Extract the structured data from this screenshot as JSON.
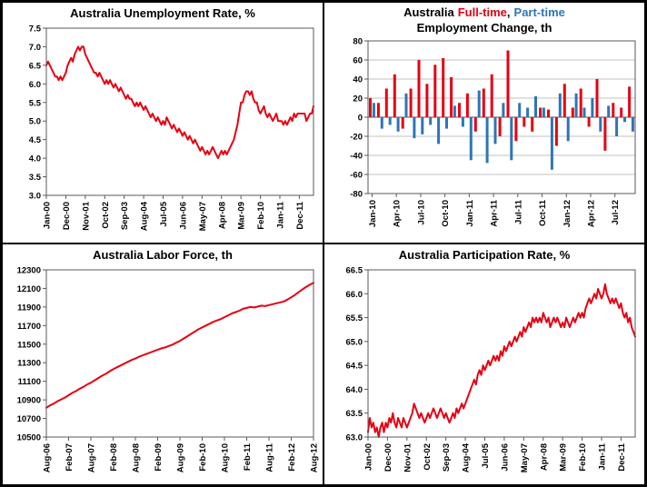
{
  "colors": {
    "line_red": "#e60012",
    "bar_red": "#e60012",
    "bar_blue": "#2e75b6",
    "grid": "#c0c0c0",
    "axis": "#595959",
    "zero_line": "#595959",
    "text": "#000000"
  },
  "panels": [
    {
      "title": "Australia Unemployment Rate, %"
    },
    {
      "title_prefix": "Australia",
      "title_fulltime": "Full-time",
      "title_sep": ",",
      "title_parttime": "Part-time",
      "title_line2": "Employment Change, th"
    },
    {
      "title": "Australia Labor Force, th"
    },
    {
      "title": "Australia Participation Rate, %"
    }
  ],
  "chart_data": [
    {
      "type": "line",
      "title": "Australia Unemployment Rate, %",
      "color": "#e60012",
      "ylim": [
        3.0,
        7.5
      ],
      "ystep": 0.5,
      "ydecimals": 1,
      "grid": false,
      "legend_position": "none",
      "x_tick_labels": [
        "Jan-00",
        "Dec-00",
        "Nov-01",
        "Oct-02",
        "Sep-03",
        "Aug-04",
        "Jul-05",
        "Jun-06",
        "May-07",
        "Apr-08",
        "Mar-09",
        "Feb-10",
        "Jan-11",
        "Dec-11"
      ],
      "x_tick_step": 11,
      "values": [
        6.5,
        6.6,
        6.5,
        6.4,
        6.3,
        6.2,
        6.2,
        6.1,
        6.2,
        6.1,
        6.2,
        6.3,
        6.5,
        6.6,
        6.7,
        6.6,
        6.8,
        6.9,
        7.0,
        6.9,
        7.0,
        7.0,
        6.8,
        6.7,
        6.6,
        6.5,
        6.4,
        6.3,
        6.3,
        6.2,
        6.3,
        6.2,
        6.1,
        6.0,
        6.1,
        6.0,
        6.1,
        6.0,
        5.9,
        6.0,
        5.9,
        5.8,
        5.9,
        5.8,
        5.7,
        5.6,
        5.7,
        5.6,
        5.6,
        5.5,
        5.4,
        5.5,
        5.4,
        5.5,
        5.4,
        5.3,
        5.4,
        5.3,
        5.2,
        5.1,
        5.2,
        5.1,
        5.0,
        5.1,
        5.0,
        4.9,
        5.0,
        4.9,
        5.1,
        5.0,
        4.9,
        4.8,
        4.9,
        4.8,
        4.7,
        4.8,
        4.7,
        4.6,
        4.7,
        4.6,
        4.5,
        4.6,
        4.5,
        4.4,
        4.5,
        4.4,
        4.3,
        4.2,
        4.3,
        4.2,
        4.1,
        4.2,
        4.1,
        4.2,
        4.3,
        4.2,
        4.1,
        4.0,
        4.1,
        4.2,
        4.1,
        4.2,
        4.1,
        4.2,
        4.3,
        4.4,
        4.5,
        4.7,
        4.9,
        5.2,
        5.5,
        5.5,
        5.7,
        5.8,
        5.8,
        5.7,
        5.8,
        5.6,
        5.5,
        5.5,
        5.3,
        5.2,
        5.3,
        5.4,
        5.2,
        5.1,
        5.2,
        5.1,
        5.0,
        5.1,
        5.2,
        5.0,
        5.0,
        5.0,
        4.9,
        5.0,
        4.9,
        5.0,
        5.1,
        5.0,
        5.2,
        5.1,
        5.2,
        5.2,
        5.2,
        5.2,
        5.2,
        5.0,
        5.1,
        5.2,
        5.2,
        5.4
      ]
    },
    {
      "type": "bar",
      "title": "Australia Full-time, Part-time Employment Change, th",
      "ylim": [
        -80,
        80
      ],
      "ystep": 20,
      "ydecimals": 0,
      "grid": true,
      "legend_position": "title",
      "x_tick_labels": [
        "Jan-10",
        "Apr-10",
        "Jul-10",
        "Oct-10",
        "Jan-11",
        "Apr-11",
        "Jul-11",
        "Oct-11",
        "Jan-12",
        "Apr-12",
        "Jul-12"
      ],
      "x_tick_step": 3,
      "series": [
        {
          "name": "Full-time",
          "color": "#e60012",
          "values": [
            20,
            15,
            30,
            45,
            -12,
            30,
            60,
            35,
            55,
            62,
            42,
            15,
            25,
            -15,
            30,
            45,
            -20,
            70,
            -25,
            -10,
            -15,
            10,
            8,
            -30,
            35,
            10,
            30,
            -10,
            40,
            -35,
            15,
            10,
            32
          ]
        },
        {
          "name": "Part-time",
          "color": "#2e75b6",
          "values": [
            15,
            -12,
            -8,
            -15,
            25,
            -22,
            -18,
            -8,
            -28,
            -12,
            12,
            -10,
            -45,
            28,
            -48,
            -28,
            15,
            -45,
            15,
            10,
            22,
            10,
            -55,
            25,
            -25,
            25,
            10,
            20,
            -15,
            12,
            -20,
            -5,
            -15
          ]
        }
      ]
    },
    {
      "type": "line",
      "title": "Australia Labor Force, th",
      "color": "#e60012",
      "ylim": [
        10500,
        12300
      ],
      "ystep": 200,
      "ydecimals": 0,
      "grid": false,
      "legend_position": "none",
      "x_tick_labels": [
        "Aug-06",
        "Feb-07",
        "Aug-07",
        "Feb-08",
        "Aug-08",
        "Feb-09",
        "Aug-09",
        "Feb-10",
        "Aug-10",
        "Feb-11",
        "Aug-11",
        "Feb-12",
        "Aug-12"
      ],
      "x_tick_step": 6,
      "values": [
        10815,
        10840,
        10860,
        10885,
        10905,
        10925,
        10950,
        10975,
        10995,
        11020,
        11040,
        11065,
        11085,
        11110,
        11135,
        11160,
        11180,
        11205,
        11230,
        11250,
        11270,
        11290,
        11310,
        11330,
        11345,
        11365,
        11380,
        11395,
        11410,
        11425,
        11440,
        11455,
        11465,
        11480,
        11495,
        11515,
        11535,
        11560,
        11585,
        11610,
        11635,
        11660,
        11680,
        11700,
        11720,
        11740,
        11755,
        11770,
        11790,
        11810,
        11830,
        11845,
        11860,
        11880,
        11890,
        11900,
        11895,
        11905,
        11915,
        11910,
        11920,
        11930,
        11940,
        11950,
        11960,
        11980,
        12005,
        12030,
        12060,
        12090,
        12115,
        12140,
        12160
      ]
    },
    {
      "type": "line",
      "title": "Australia Participation Rate, %",
      "color": "#e60012",
      "ylim": [
        63.0,
        66.5
      ],
      "ystep": 0.5,
      "ydecimals": 1,
      "grid": false,
      "legend_position": "none",
      "x_tick_labels": [
        "Jan-00",
        "Dec-00",
        "Nov-01",
        "Oct-02",
        "Sep-03",
        "Aug-04",
        "Jul-05",
        "Jun-06",
        "May-07",
        "Apr-08",
        "Mar-09",
        "Feb-10",
        "Jan-11",
        "Dec-11"
      ],
      "x_tick_step": 11,
      "values": [
        63.1,
        63.4,
        63.2,
        63.3,
        63.1,
        63.2,
        63.0,
        63.2,
        63.3,
        63.1,
        63.3,
        63.2,
        63.4,
        63.3,
        63.5,
        63.3,
        63.2,
        63.4,
        63.3,
        63.2,
        63.4,
        63.3,
        63.2,
        63.3,
        63.4,
        63.5,
        63.7,
        63.6,
        63.5,
        63.4,
        63.5,
        63.4,
        63.3,
        63.4,
        63.5,
        63.4,
        63.5,
        63.6,
        63.5,
        63.4,
        63.5,
        63.6,
        63.5,
        63.4,
        63.5,
        63.4,
        63.3,
        63.4,
        63.5,
        63.4,
        63.6,
        63.5,
        63.6,
        63.7,
        63.6,
        63.7,
        63.8,
        63.9,
        64.0,
        64.1,
        64.2,
        64.1,
        64.3,
        64.4,
        64.3,
        64.5,
        64.4,
        64.5,
        64.6,
        64.5,
        64.6,
        64.7,
        64.6,
        64.7,
        64.6,
        64.8,
        64.7,
        64.9,
        64.8,
        64.9,
        65.0,
        64.9,
        65.0,
        65.1,
        65.0,
        65.1,
        65.2,
        65.1,
        65.3,
        65.2,
        65.3,
        65.4,
        65.3,
        65.5,
        65.4,
        65.5,
        65.4,
        65.5,
        65.4,
        65.6,
        65.5,
        65.4,
        65.5,
        65.3,
        65.4,
        65.5,
        65.4,
        65.5,
        65.4,
        65.3,
        65.4,
        65.3,
        65.5,
        65.4,
        65.3,
        65.4,
        65.5,
        65.4,
        65.5,
        65.6,
        65.5,
        65.6,
        65.5,
        65.7,
        65.8,
        65.9,
        65.8,
        65.9,
        66.0,
        65.9,
        66.1,
        66.0,
        65.9,
        66.0,
        66.2,
        66.0,
        65.9,
        65.8,
        65.9,
        65.8,
        65.9,
        65.8,
        65.7,
        65.8,
        65.6,
        65.5,
        65.6,
        65.4,
        65.5,
        65.3,
        65.2,
        65.1
      ]
    }
  ]
}
